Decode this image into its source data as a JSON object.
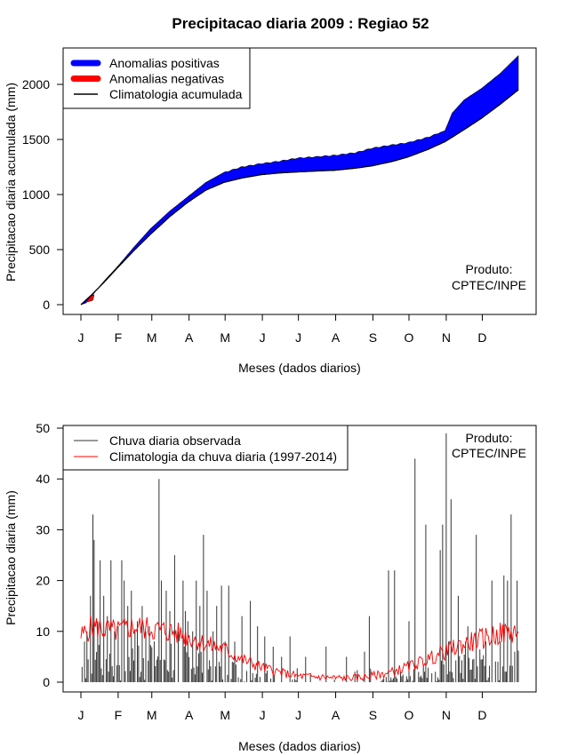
{
  "title": "Precipitacao diaria 2009 : Regiao 52",
  "product": {
    "line1": "Produto:",
    "line2": "CPTEC/INPE"
  },
  "months": [
    "J",
    "F",
    "M",
    "A",
    "M",
    "J",
    "J",
    "A",
    "S",
    "O",
    "N",
    "D"
  ],
  "month_start_days": [
    1,
    32,
    60,
    91,
    121,
    152,
    182,
    213,
    244,
    274,
    305,
    335
  ],
  "colors": {
    "positive": "#0000ff",
    "negative": "#ff0000",
    "climatology": "#000000",
    "observed": "#333333",
    "clim_daily": "#ff0000"
  },
  "chart_data": [
    {
      "type": "area",
      "title": "Precipitacao diaria 2009 : Regiao 52",
      "xlabel": "Meses (dados diarios)",
      "ylabel": "Precipitacao diaria acumulada (mm)",
      "xlim": [
        1,
        365
      ],
      "ylim": [
        0,
        2250
      ],
      "yticks": [
        0,
        500,
        1000,
        1500,
        2000
      ],
      "legend": [
        {
          "label": "Anomalias positivas",
          "kind": "thick",
          "color": "#0000ff"
        },
        {
          "label": "Anomalias negativas",
          "kind": "thick",
          "color": "#ff0000"
        },
        {
          "label": "Climatologia acumulada",
          "kind": "line",
          "color": "#000000"
        }
      ],
      "climatology_cumulative": {
        "x": [
          1,
          10,
          20,
          31,
          45,
          59,
          75,
          90,
          105,
          120,
          135,
          151,
          165,
          181,
          200,
          212,
          230,
          243,
          260,
          273,
          290,
          304,
          320,
          334,
          350,
          365
        ],
        "y": [
          0,
          90,
          200,
          330,
          490,
          640,
          800,
          930,
          1040,
          1110,
          1150,
          1180,
          1195,
          1205,
          1215,
          1220,
          1240,
          1260,
          1300,
          1340,
          1410,
          1480,
          1590,
          1690,
          1820,
          1950
        ]
      },
      "observed_cumulative": {
        "x": [
          1,
          5,
          10,
          20,
          31,
          45,
          59,
          75,
          90,
          105,
          120,
          135,
          151,
          165,
          181,
          200,
          212,
          230,
          243,
          260,
          273,
          290,
          304,
          310,
          320,
          334,
          350,
          365
        ],
        "y": [
          0,
          15,
          80,
          210,
          340,
          520,
          690,
          850,
          980,
          1110,
          1200,
          1250,
          1280,
          1300,
          1330,
          1345,
          1355,
          1380,
          1420,
          1450,
          1470,
          1520,
          1580,
          1740,
          1860,
          1960,
          2100,
          2260
        ]
      }
    },
    {
      "type": "bar",
      "xlabel": "Meses (dados diarios)",
      "ylabel": "Precipitacao diaria (mm)",
      "xlim": [
        1,
        365
      ],
      "ylim": [
        0,
        50
      ],
      "yticks": [
        0,
        10,
        20,
        30,
        40,
        50
      ],
      "legend": [
        {
          "label": "Chuva diaria observada",
          "kind": "line",
          "color": "#333333"
        },
        {
          "label": "Climatologia da chuva diaria (1997-2014)",
          "kind": "line",
          "color": "#ff0000"
        }
      ],
      "observed_peaks": {
        "x": [
          2,
          4,
          6,
          9,
          11,
          12,
          15,
          17,
          20,
          23,
          26,
          29,
          32,
          35,
          37,
          40,
          43,
          46,
          48,
          52,
          55,
          58,
          62,
          66,
          68,
          72,
          75,
          79,
          82,
          86,
          88,
          90,
          94,
          97,
          100,
          103,
          106,
          111,
          114,
          118,
          121,
          124,
          129,
          135,
          142,
          148,
          154,
          161,
          168,
          175,
          188,
          205,
          222,
          237,
          241,
          257,
          262,
          274,
          279,
          288,
          300,
          302,
          305,
          307,
          309,
          315,
          321,
          323,
          330,
          338,
          343,
          350,
          353,
          356,
          359,
          362,
          364
        ],
        "y": [
          3,
          8,
          10,
          17,
          33,
          28,
          12,
          24,
          17,
          13,
          24,
          10,
          11,
          24,
          20,
          15,
          18,
          10,
          12,
          15,
          10,
          11,
          8,
          40,
          20,
          18,
          14,
          25,
          10,
          20,
          14,
          12,
          10,
          20,
          15,
          29,
          18,
          10,
          15,
          19,
          8,
          19,
          8,
          13,
          16,
          11,
          9,
          7,
          5,
          9,
          5,
          7,
          5,
          6,
          13,
          22,
          22,
          12,
          44,
          31,
          26,
          31,
          49,
          8,
          36,
          17,
          8,
          11,
          29,
          8,
          20,
          8,
          21,
          20,
          33,
          6,
          20
        ]
      },
      "climatology_daily": {
        "x": [
          1,
          10,
          20,
          31,
          45,
          59,
          75,
          90,
          105,
          120,
          135,
          151,
          165,
          181,
          200,
          212,
          230,
          243,
          260,
          273,
          290,
          304,
          320,
          334,
          350,
          365
        ],
        "y": [
          9,
          11,
          10.5,
          10,
          11,
          10.5,
          10,
          9,
          7.5,
          6.5,
          4.5,
          3,
          2,
          1.2,
          1,
          0.8,
          0.8,
          1.2,
          2,
          3,
          4.5,
          6,
          7.5,
          8.5,
          9.5,
          10
        ]
      }
    }
  ]
}
